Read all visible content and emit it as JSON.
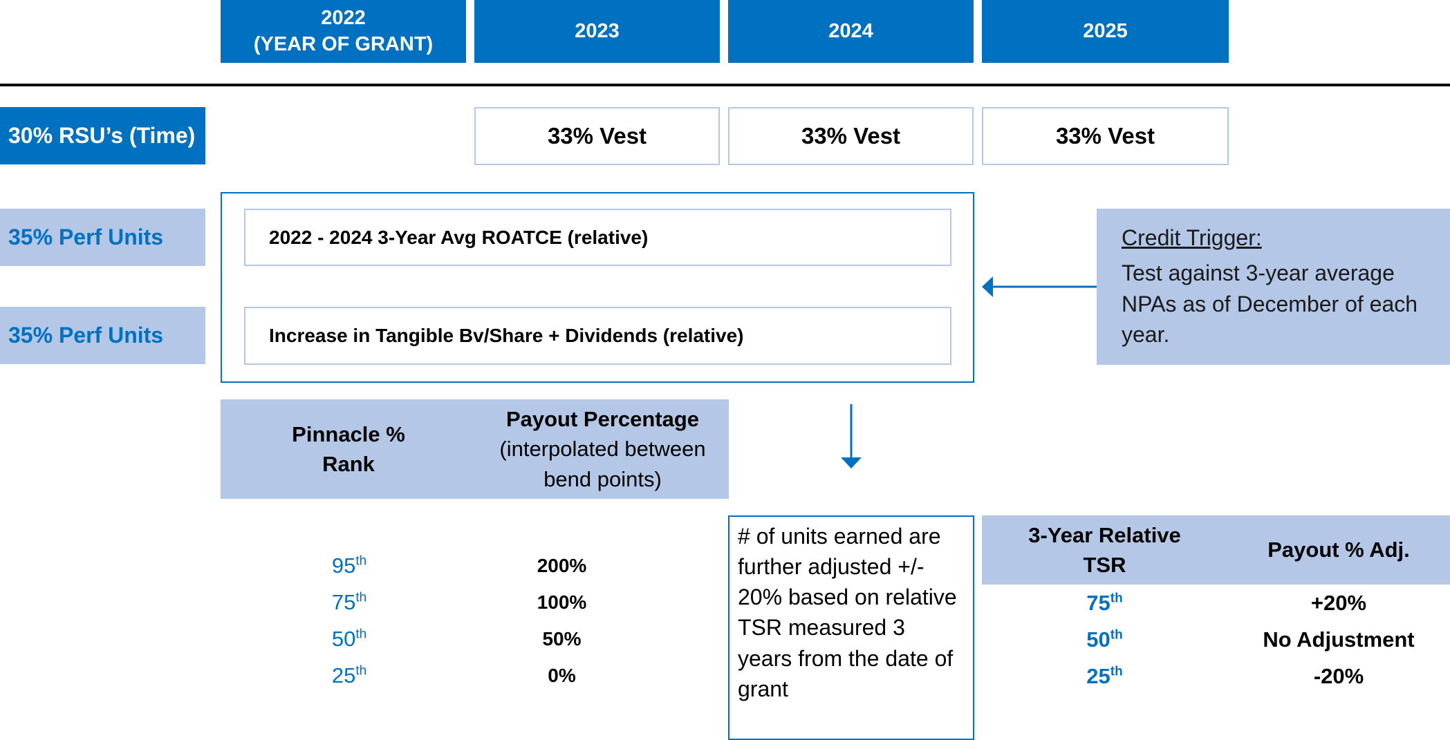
{
  "years": [
    {
      "line1": "2022",
      "line2": "(YEAR OF GRANT)"
    },
    {
      "line1": "2023",
      "line2": ""
    },
    {
      "line1": "2024",
      "line2": ""
    },
    {
      "line1": "2025",
      "line2": ""
    }
  ],
  "rows": {
    "rsu_label": "30% RSU’s (Time)",
    "perf1_label": "35% Perf Units",
    "perf2_label": "35% Perf Units"
  },
  "vest": [
    "33% Vest",
    "33% Vest",
    "33% Vest"
  ],
  "metrics": {
    "roatce": "2022 - 2024 3-Year Avg ROATCE (relative)",
    "tbv": "Increase in Tangible Bv/Share + Dividends (relative)"
  },
  "credit_trigger": {
    "title": "Credit Trigger:",
    "body": "Test against 3-year average NPAs as of December of each year."
  },
  "pinnacle_table": {
    "header_rank": "Pinnacle % Rank",
    "header_payout_bold": "Payout Percentage",
    "header_payout_note": "(interpolated between bend points)",
    "rows": [
      {
        "rank": "95",
        "suffix": "th",
        "payout": "200%"
      },
      {
        "rank": "75",
        "suffix": "th",
        "payout": "100%"
      },
      {
        "rank": "50",
        "suffix": "th",
        "payout": "50%"
      },
      {
        "rank": "25",
        "suffix": "th",
        "payout": "0%"
      }
    ]
  },
  "units_note": "# of units earned are further adjusted +/- 20% based on relative TSR measured 3 years from the date of grant",
  "tsr_table": {
    "header_tsr": "3-Year Relative TSR",
    "header_adj": "Payout % Adj.",
    "rows": [
      {
        "rank": "75",
        "suffix": "th",
        "adj": "+20%"
      },
      {
        "rank": "50",
        "suffix": "th",
        "adj": "No Adjustment"
      },
      {
        "rank": "25",
        "suffix": "th",
        "adj": "-20%"
      }
    ]
  },
  "colors": {
    "primary_blue": "#0070c0",
    "light_blue": "#b4c7e7",
    "rule": "#000000"
  }
}
